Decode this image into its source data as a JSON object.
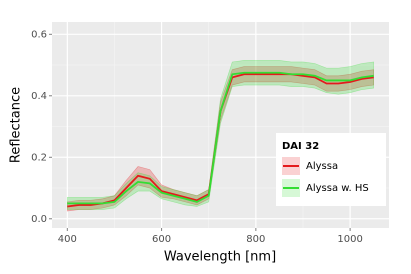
{
  "chart_data": {
    "type": "line",
    "xlabel": "Wavelength [nm]",
    "ylabel": "Reflectance",
    "x": [
      400,
      425,
      450,
      475,
      500,
      525,
      550,
      575,
      600,
      625,
      650,
      675,
      700,
      725,
      750,
      775,
      800,
      825,
      850,
      875,
      900,
      925,
      950,
      975,
      1000,
      1025,
      1050
    ],
    "series": [
      {
        "name": "Alyssa",
        "color": "#e41a1c",
        "values": [
          0.04,
          0.045,
          0.045,
          0.05,
          0.06,
          0.1,
          0.14,
          0.13,
          0.09,
          0.08,
          0.07,
          0.06,
          0.08,
          0.35,
          0.46,
          0.47,
          0.47,
          0.47,
          0.47,
          0.47,
          0.465,
          0.46,
          0.44,
          0.44,
          0.445,
          0.455,
          0.46
        ],
        "lower": [
          0.025,
          0.03,
          0.03,
          0.035,
          0.045,
          0.075,
          0.11,
          0.1,
          0.07,
          0.065,
          0.055,
          0.045,
          0.065,
          0.32,
          0.435,
          0.445,
          0.445,
          0.445,
          0.445,
          0.445,
          0.44,
          0.435,
          0.415,
          0.415,
          0.42,
          0.43,
          0.435
        ],
        "upper": [
          0.055,
          0.06,
          0.06,
          0.065,
          0.075,
          0.125,
          0.17,
          0.16,
          0.11,
          0.095,
          0.085,
          0.075,
          0.095,
          0.38,
          0.485,
          0.495,
          0.495,
          0.495,
          0.495,
          0.495,
          0.49,
          0.485,
          0.465,
          0.465,
          0.47,
          0.48,
          0.485
        ]
      },
      {
        "name": "Alyssa w. HS",
        "color": "#33dd33",
        "values": [
          0.05,
          0.05,
          0.05,
          0.05,
          0.055,
          0.09,
          0.12,
          0.115,
          0.085,
          0.075,
          0.065,
          0.055,
          0.075,
          0.35,
          0.47,
          0.475,
          0.475,
          0.475,
          0.475,
          0.47,
          0.47,
          0.465,
          0.45,
          0.45,
          0.45,
          0.46,
          0.465
        ],
        "lower": [
          0.03,
          0.03,
          0.03,
          0.03,
          0.035,
          0.065,
          0.09,
          0.09,
          0.065,
          0.055,
          0.045,
          0.04,
          0.055,
          0.31,
          0.43,
          0.435,
          0.435,
          0.435,
          0.435,
          0.43,
          0.43,
          0.425,
          0.41,
          0.405,
          0.41,
          0.42,
          0.425
        ],
        "upper": [
          0.07,
          0.07,
          0.07,
          0.07,
          0.075,
          0.115,
          0.15,
          0.14,
          0.105,
          0.095,
          0.085,
          0.075,
          0.095,
          0.39,
          0.51,
          0.515,
          0.515,
          0.515,
          0.515,
          0.51,
          0.51,
          0.505,
          0.49,
          0.49,
          0.495,
          0.505,
          0.51
        ]
      }
    ],
    "legend_title": "DAI 32",
    "xlim": [
      367.5,
      1082.5
    ],
    "ylim": [
      -0.03,
      0.64
    ],
    "xticks": [
      400,
      600,
      800,
      1000
    ],
    "yticks": [
      {
        "value": 0,
        "label": "0.0"
      },
      0.2,
      0.4,
      0.6
    ],
    "minor_xticks": [
      500,
      700,
      900
    ],
    "minor_yticks": [
      0.1,
      0.3,
      0.5
    ],
    "grid": true,
    "legend": "right"
  }
}
